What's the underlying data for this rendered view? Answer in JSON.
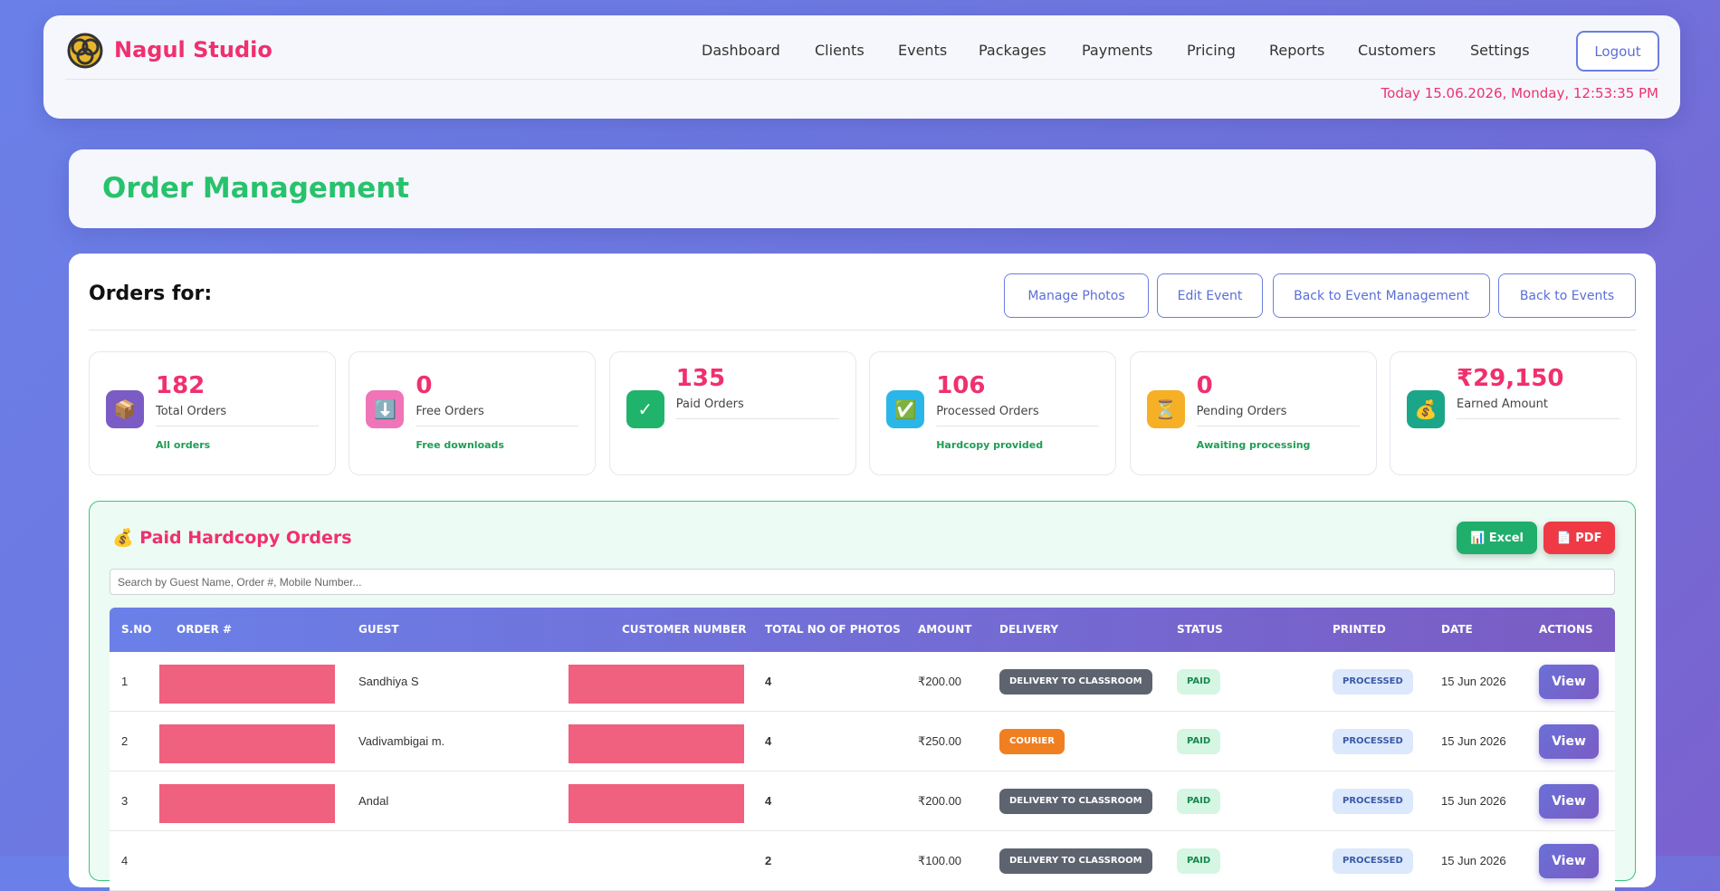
{
  "header": {
    "brand": "Nagul Studio",
    "nav": [
      "Dashboard",
      "Clients",
      "Events",
      "Packages",
      "Payments",
      "Pricing",
      "Reports",
      "Customers",
      "Settings"
    ],
    "logout": "Logout",
    "datetime": "Today 15.06.2026, Monday, 12:53:35 PM"
  },
  "page_title": "Order Management",
  "orders": {
    "heading": "Orders for:",
    "buttons": [
      "Manage Photos",
      "Edit Event",
      "Back to Event Management",
      "Back to Events"
    ]
  },
  "stats": [
    {
      "icon": "📦",
      "value": "182",
      "label": "Total Orders",
      "note": "All orders",
      "color": "#7b5cc4"
    },
    {
      "icon": "⬇️",
      "value": "0",
      "label": "Free Orders",
      "note": "Free downloads",
      "color": "#f074b8"
    },
    {
      "icon": "✓",
      "value": "135",
      "label": "Paid Orders",
      "color": "#20b36b"
    },
    {
      "icon": "✅",
      "value": "106",
      "label": "Processed Orders",
      "note": "Hardcopy provided",
      "color": "#2bb6e8"
    },
    {
      "icon": "⏳",
      "value": "0",
      "label": "Pending Orders",
      "note": "Awaiting processing",
      "color": "#f6b026"
    },
    {
      "icon": "💰",
      "value": "₹29,150",
      "label": "Earned Amount",
      "color": "#1ba68a"
    }
  ],
  "paid_section": {
    "icon": "💰",
    "title": "Paid Hardcopy Orders",
    "excel": {
      "icon": "📊",
      "label": "Excel"
    },
    "pdf": {
      "icon": "📄",
      "label": "PDF"
    },
    "search_placeholder": "Search by Guest Name, Order #, Mobile Number...",
    "columns": [
      "S.NO",
      "ORDER #",
      "GUEST",
      "CUSTOMER NUMBER",
      "TOTAL NO OF PHOTOS",
      "AMOUNT",
      "DELIVERY",
      "STATUS",
      "PRINTED",
      "DATE",
      "ACTIONS"
    ],
    "rows": [
      {
        "sno": "1",
        "guest": "Sandhiya S",
        "photos": "4",
        "amount": "₹200.00",
        "delivery": "DELIVERY TO CLASSROOM",
        "delivery_color": "#5d6470",
        "status": "PAID",
        "printed": "PROCESSED",
        "date": "15 Jun 2026",
        "action": "View"
      },
      {
        "sno": "2",
        "guest": "Vadivambigai m.",
        "photos": "4",
        "amount": "₹250.00",
        "delivery": "COURIER",
        "delivery_color": "#f07f22",
        "status": "PAID",
        "printed": "PROCESSED",
        "date": "15 Jun 2026",
        "action": "View"
      },
      {
        "sno": "3",
        "guest": "Andal",
        "photos": "4",
        "amount": "₹200.00",
        "delivery": "DELIVERY TO CLASSROOM",
        "delivery_color": "#5d6470",
        "status": "PAID",
        "printed": "PROCESSED",
        "date": "15 Jun 2026",
        "action": "View"
      },
      {
        "sno": "4",
        "photos": "2",
        "amount": "₹100.00",
        "delivery": "DELIVERY TO CLASSROOM",
        "delivery_color": "#5d6470",
        "status": "PAID",
        "printed": "PROCESSED",
        "date": "15 Jun 2026",
        "action": "View"
      }
    ]
  }
}
